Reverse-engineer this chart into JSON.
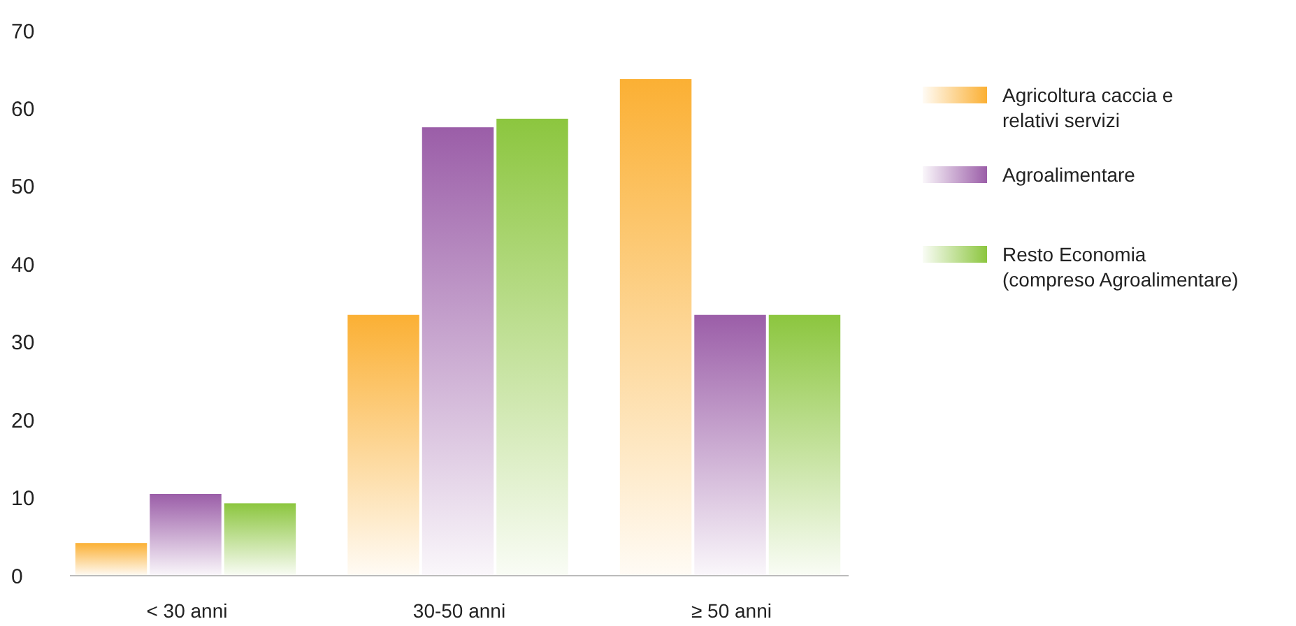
{
  "chart_data": {
    "type": "bar",
    "categories": [
      "< 30 anni",
      "30-50 anni",
      "≥ 50 anni"
    ],
    "series": [
      {
        "name": "Agricoltura caccia e relativi servizi",
        "color": "#fbb034",
        "values": [
          4.2,
          33.5,
          63.8
        ]
      },
      {
        "name": "Agroalimentare",
        "color": "#9b5ea8",
        "values": [
          10.5,
          57.6,
          33.5
        ]
      },
      {
        "name": "Resto Economia (compreso Agroalimentare)",
        "color": "#8cc63f",
        "values": [
          9.3,
          58.7,
          33.5
        ]
      }
    ],
    "ylim": [
      0,
      70
    ],
    "yticks": [
      0,
      10,
      20,
      30,
      40,
      50,
      60,
      70
    ],
    "legend": "right",
    "grid": false
  }
}
